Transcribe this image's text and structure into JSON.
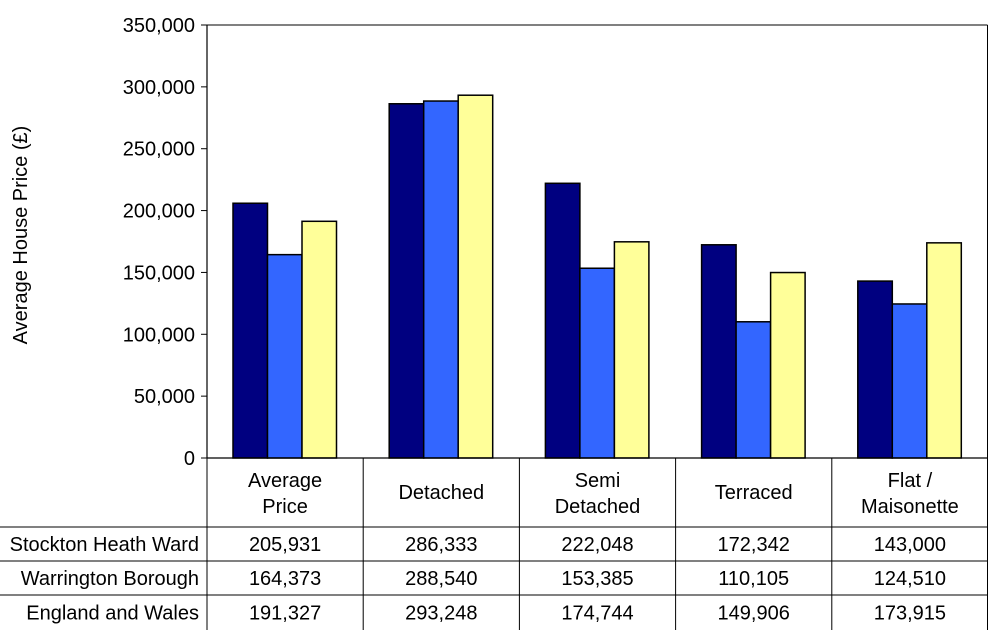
{
  "chart_data": {
    "type": "bar",
    "title": "",
    "xlabel": "",
    "ylabel": "Average House Price (£)",
    "ylim": [
      0,
      350000
    ],
    "yticks": [
      0,
      50000,
      100000,
      150000,
      200000,
      250000,
      300000,
      350000
    ],
    "ytick_labels": [
      "0",
      "50,000",
      "100,000",
      "150,000",
      "200,000",
      "250,000",
      "300,000",
      "350,000"
    ],
    "categories": [
      [
        "Average",
        "Price"
      ],
      [
        "Detached"
      ],
      [
        "Semi",
        "Detached"
      ],
      [
        "Terraced"
      ],
      [
        "Flat /",
        "Maisonette"
      ]
    ],
    "grid": false,
    "legend": "data table below chart",
    "series": [
      {
        "name": "Stockton Heath Ward",
        "color": "#000080",
        "values": [
          205931,
          286333,
          222048,
          172342,
          143000
        ],
        "labels": [
          "205,931",
          "286,333",
          "222,048",
          "172,342",
          "143,000"
        ]
      },
      {
        "name": "Warrington Borough",
        "color": "#3366FF",
        "values": [
          164373,
          288540,
          153385,
          110105,
          124510
        ],
        "labels": [
          "164,373",
          "288,540",
          "153,385",
          "110,105",
          "124,510"
        ]
      },
      {
        "name": "England and Wales",
        "color": "#FFFF99",
        "values": [
          191327,
          293248,
          174744,
          149906,
          173915
        ],
        "labels": [
          "191,327",
          "293,248",
          "174,744",
          "149,906",
          "173,915"
        ]
      }
    ]
  }
}
